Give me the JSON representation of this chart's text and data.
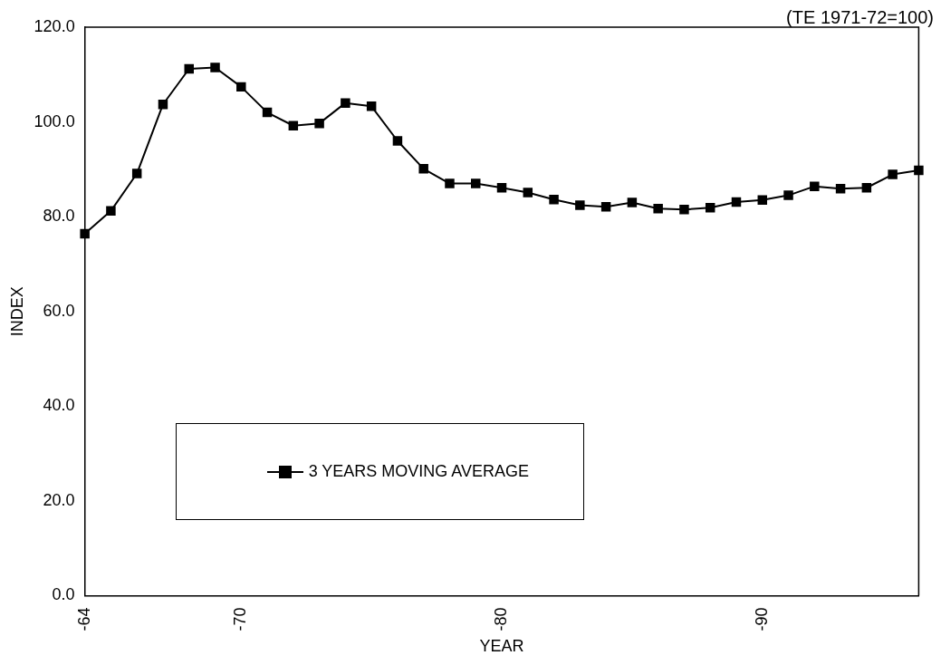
{
  "chart_data": {
    "type": "line",
    "xlabel": "YEAR",
    "ylabel": "INDEX",
    "annotations": [
      "(TE 1971-72=100)"
    ],
    "categories": [
      "-64",
      null,
      null,
      null,
      null,
      null,
      "-70",
      null,
      null,
      null,
      null,
      null,
      null,
      null,
      null,
      null,
      "-80",
      null,
      null,
      null,
      null,
      null,
      null,
      null,
      null,
      null,
      "-90",
      null,
      null,
      null,
      null,
      null,
      null
    ],
    "series": [
      {
        "name": "3 YEARS MOVING AVERAGE",
        "color": "#000000",
        "values": [
          76.4,
          81.2,
          89.1,
          103.7,
          111.2,
          111.5,
          107.4,
          102.0,
          99.2,
          99.7,
          104.0,
          103.3,
          96.0,
          90.1,
          87.0,
          87.0,
          86.1,
          85.1,
          83.6,
          82.4,
          82.1,
          83.0,
          81.7,
          81.5,
          81.9,
          83.1,
          83.5,
          84.5,
          86.4,
          85.9,
          86.1,
          88.9,
          89.8
        ]
      }
    ],
    "ylim": [
      0,
      120
    ],
    "yticks": [
      {
        "value": 0,
        "label": "0.0"
      },
      {
        "value": 20,
        "label": "20.0"
      },
      {
        "value": 40,
        "label": "40.0"
      },
      {
        "value": 60,
        "label": "60.0"
      },
      {
        "value": 80,
        "label": "80.0"
      },
      {
        "value": 100,
        "label": "100.0"
      },
      {
        "value": 120,
        "label": "120.0"
      }
    ],
    "grid": false,
    "legend": "bottom left",
    "marker": "square",
    "line_style": "solid"
  }
}
